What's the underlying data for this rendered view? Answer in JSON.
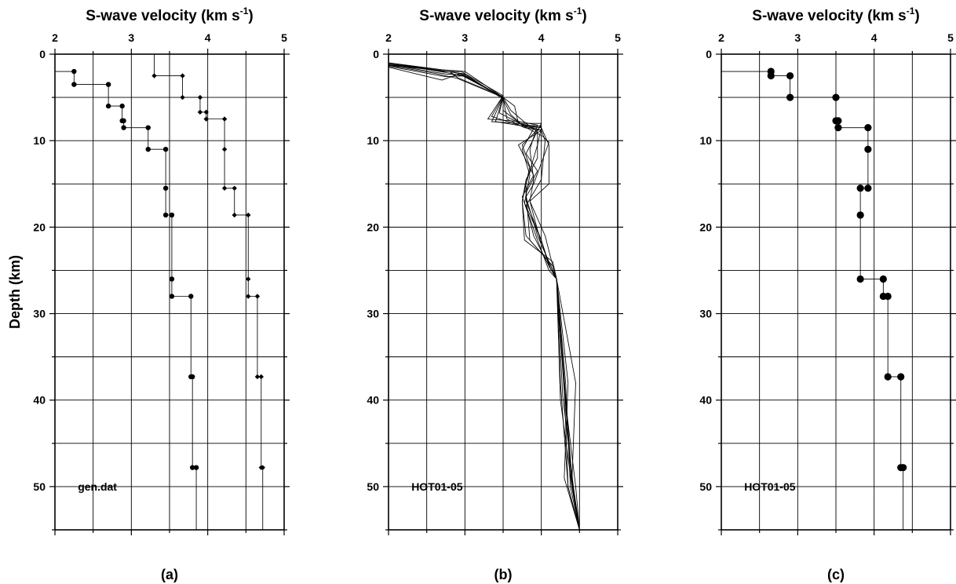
{
  "figure": {
    "ylabel": "Depth (km)"
  },
  "chart_data": [
    {
      "type": "line",
      "panel_label": "(a)",
      "xlabel": "S-wave velocity (km s",
      "xlabel_sup": "-1",
      "xlabel_end": ")",
      "xlim": [
        2,
        5
      ],
      "ylim": [
        0,
        55
      ],
      "y_inverted": true,
      "x_ticks": [
        "2",
        "3",
        "4",
        "5"
      ],
      "y_ticks": [
        "0",
        "10",
        "20",
        "30",
        "40",
        "50"
      ],
      "grid": true,
      "annotation": "gen.dat",
      "series": [
        {
          "style": "step-with-dots",
          "points": [
            [
              2.0,
              2.0
            ],
            [
              2.25,
              2.0
            ],
            [
              2.25,
              3.5
            ],
            [
              2.7,
              3.5
            ],
            [
              2.7,
              6.0
            ],
            [
              2.88,
              6.0
            ],
            [
              2.88,
              7.7
            ],
            [
              2.9,
              7.7
            ],
            [
              2.9,
              8.5
            ],
            [
              3.22,
              8.5
            ],
            [
              3.22,
              11.0
            ],
            [
              3.45,
              11.0
            ],
            [
              3.45,
              15.5
            ],
            [
              3.45,
              18.6
            ],
            [
              3.53,
              18.6
            ],
            [
              3.53,
              26.0
            ],
            [
              3.53,
              28.0
            ],
            [
              3.78,
              28.0
            ],
            [
              3.78,
              37.3
            ],
            [
              3.8,
              37.3
            ],
            [
              3.8,
              47.8
            ],
            [
              3.85,
              47.8
            ],
            [
              3.85,
              55.0
            ]
          ]
        },
        {
          "style": "step-with-diamonds",
          "points": [
            [
              3.3,
              0.0
            ],
            [
              3.3,
              2.5
            ],
            [
              3.67,
              2.5
            ],
            [
              3.67,
              5.0
            ],
            [
              3.9,
              5.0
            ],
            [
              3.9,
              6.7
            ],
            [
              3.98,
              6.7
            ],
            [
              3.98,
              7.5
            ],
            [
              4.22,
              7.5
            ],
            [
              4.22,
              11.0
            ],
            [
              4.22,
              15.5
            ],
            [
              4.35,
              15.5
            ],
            [
              4.35,
              18.6
            ],
            [
              4.53,
              18.6
            ],
            [
              4.53,
              26.0
            ],
            [
              4.53,
              28.0
            ],
            [
              4.65,
              28.0
            ],
            [
              4.65,
              37.3
            ],
            [
              4.7,
              37.3
            ],
            [
              4.7,
              47.8
            ],
            [
              4.72,
              47.8
            ],
            [
              4.72,
              55.0
            ]
          ]
        }
      ]
    },
    {
      "type": "line",
      "panel_label": "(b)",
      "xlabel": "S-wave velocity (km s",
      "xlabel_sup": "-1",
      "xlabel_end": ")",
      "xlim": [
        2,
        5
      ],
      "ylim": [
        0,
        55
      ],
      "y_inverted": true,
      "x_ticks": [
        "2",
        "3",
        "4",
        "5"
      ],
      "y_ticks": [
        "0",
        "10",
        "20",
        "30",
        "40",
        "50"
      ],
      "grid": true,
      "annotation": "HOT01-05",
      "series": [
        {
          "points": [
            [
              2.0,
              1.0
            ],
            [
              2.7,
              1.8
            ],
            [
              3.0,
              2.0
            ],
            [
              3.5,
              5.0
            ],
            [
              3.35,
              7.8
            ],
            [
              3.7,
              8.0
            ],
            [
              4.0,
              8.5
            ],
            [
              3.95,
              10.5
            ],
            [
              3.8,
              15.0
            ],
            [
              3.8,
              17.0
            ],
            [
              4.0,
              21.5
            ],
            [
              4.1,
              24.5
            ],
            [
              4.2,
              26.0
            ],
            [
              4.25,
              38.0
            ],
            [
              4.35,
              50.0
            ],
            [
              4.5,
              55.0
            ]
          ]
        },
        {
          "points": [
            [
              2.0,
              1.2
            ],
            [
              2.8,
              2.0
            ],
            [
              2.95,
              2.3
            ],
            [
              3.5,
              5.0
            ],
            [
              3.5,
              6.5
            ],
            [
              3.75,
              8.2
            ],
            [
              4.0,
              8.3
            ],
            [
              3.75,
              10.5
            ],
            [
              3.85,
              13.0
            ],
            [
              3.75,
              17.0
            ],
            [
              3.78,
              21.5
            ],
            [
              4.15,
              24.0
            ],
            [
              4.2,
              26.0
            ],
            [
              4.3,
              38.5
            ],
            [
              4.4,
              50.0
            ],
            [
              4.5,
              55.0
            ]
          ]
        },
        {
          "points": [
            [
              2.0,
              1.4
            ],
            [
              2.75,
              2.6
            ],
            [
              3.0,
              2.5
            ],
            [
              3.5,
              5.0
            ],
            [
              3.65,
              6.0
            ],
            [
              3.7,
              8.0
            ],
            [
              4.0,
              8.8
            ],
            [
              4.05,
              10.0
            ],
            [
              4.0,
              14.5
            ],
            [
              3.8,
              17.5
            ],
            [
              3.9,
              21.0
            ],
            [
              4.1,
              24.5
            ],
            [
              4.2,
              26.0
            ],
            [
              4.3,
              39.0
            ],
            [
              4.45,
              50.0
            ],
            [
              4.5,
              55.0
            ]
          ]
        },
        {
          "points": [
            [
              2.0,
              1.1
            ],
            [
              2.7,
              2.0
            ],
            [
              2.95,
              2.0
            ],
            [
              3.5,
              4.8
            ],
            [
              3.3,
              7.5
            ],
            [
              3.72,
              7.8
            ],
            [
              3.95,
              8.2
            ],
            [
              3.85,
              11.0
            ],
            [
              3.9,
              14.5
            ],
            [
              3.85,
              17.0
            ],
            [
              4.05,
              21.0
            ],
            [
              4.15,
              24.5
            ],
            [
              4.2,
              26.0
            ],
            [
              4.35,
              38.0
            ],
            [
              4.3,
              49.0
            ],
            [
              4.5,
              55.0
            ]
          ]
        },
        {
          "points": [
            [
              2.0,
              1.3
            ],
            [
              2.6,
              2.2
            ],
            [
              2.9,
              2.8
            ],
            [
              3.5,
              5.0
            ],
            [
              3.55,
              7.5
            ],
            [
              3.78,
              8.5
            ],
            [
              4.0,
              8.8
            ],
            [
              3.7,
              10.5
            ],
            [
              3.9,
              14.0
            ],
            [
              3.75,
              16.5
            ],
            [
              3.95,
              21.5
            ],
            [
              4.1,
              25.0
            ],
            [
              4.2,
              26.0
            ],
            [
              4.25,
              40.0
            ],
            [
              4.4,
              50.0
            ],
            [
              4.5,
              55.0
            ]
          ]
        },
        {
          "points": [
            [
              2.0,
              1.0
            ],
            [
              2.8,
              2.2
            ],
            [
              3.0,
              2.6
            ],
            [
              3.5,
              5.0
            ],
            [
              3.4,
              7.8
            ],
            [
              3.75,
              8.3
            ],
            [
              4.0,
              8.5
            ],
            [
              4.1,
              10.5
            ],
            [
              4.1,
              15.0
            ],
            [
              3.85,
              17.0
            ],
            [
              4.0,
              22.0
            ],
            [
              4.15,
              25.0
            ],
            [
              4.2,
              26.0
            ],
            [
              4.3,
              37.5
            ],
            [
              4.4,
              49.0
            ],
            [
              4.5,
              55.0
            ]
          ]
        },
        {
          "points": [
            [
              2.0,
              1.5
            ],
            [
              2.7,
              3.0
            ],
            [
              2.95,
              2.2
            ],
            [
              3.5,
              5.0
            ],
            [
              3.6,
              6.5
            ],
            [
              3.8,
              8.0
            ],
            [
              3.95,
              9.0
            ],
            [
              3.95,
              12.0
            ],
            [
              3.8,
              14.5
            ],
            [
              3.75,
              17.0
            ],
            [
              3.8,
              21.0
            ],
            [
              4.1,
              24.0
            ],
            [
              4.2,
              26.0
            ],
            [
              4.3,
              38.5
            ],
            [
              4.35,
              50.0
            ],
            [
              4.5,
              55.0
            ]
          ]
        },
        {
          "points": [
            [
              2.0,
              1.2
            ],
            [
              2.75,
              2.3
            ],
            [
              2.95,
              2.4
            ],
            [
              3.5,
              5.0
            ],
            [
              3.45,
              6.8
            ],
            [
              3.72,
              8.0
            ],
            [
              4.0,
              8.0
            ],
            [
              3.8,
              11.5
            ],
            [
              3.95,
              13.5
            ],
            [
              3.8,
              16.0
            ],
            [
              3.85,
              21.5
            ],
            [
              4.15,
              24.5
            ],
            [
              4.2,
              26.0
            ],
            [
              4.28,
              39.5
            ],
            [
              4.42,
              50.0
            ],
            [
              4.5,
              55.0
            ]
          ]
        },
        {
          "points": [
            [
              2.0,
              1.0
            ],
            [
              2.7,
              1.9
            ],
            [
              3.0,
              2.3
            ],
            [
              3.5,
              5.2
            ],
            [
              3.6,
              7.0
            ],
            [
              3.78,
              8.4
            ],
            [
              4.02,
              9.5
            ],
            [
              4.1,
              10.2
            ],
            [
              3.9,
              15.0
            ],
            [
              3.8,
              16.5
            ],
            [
              3.95,
              21.0
            ],
            [
              4.1,
              24.0
            ],
            [
              4.2,
              26.0
            ],
            [
              4.45,
              38.0
            ],
            [
              4.4,
              49.5
            ],
            [
              4.5,
              55.0
            ]
          ]
        },
        {
          "points": [
            [
              2.0,
              1.3
            ],
            [
              2.8,
              2.0
            ],
            [
              2.9,
              2.7
            ],
            [
              3.5,
              4.9
            ],
            [
              3.35,
              7.2
            ],
            [
              3.7,
              8.2
            ],
            [
              3.9,
              8.6
            ],
            [
              3.75,
              11.0
            ],
            [
              3.85,
              14.0
            ],
            [
              3.78,
              17.2
            ],
            [
              4.0,
              21.5
            ],
            [
              4.12,
              24.8
            ],
            [
              4.2,
              26.0
            ],
            [
              4.32,
              38.2
            ],
            [
              4.38,
              50.0
            ],
            [
              4.5,
              55.0
            ]
          ]
        }
      ]
    },
    {
      "type": "line",
      "panel_label": "(c)",
      "xlabel": "S-wave velocity (km s",
      "xlabel_sup": "-1",
      "xlabel_end": ")",
      "xlim": [
        2,
        5
      ],
      "ylim": [
        0,
        55
      ],
      "y_inverted": true,
      "x_ticks": [
        "2",
        "3",
        "4",
        "5"
      ],
      "y_ticks": [
        "0",
        "10",
        "20",
        "30",
        "40",
        "50"
      ],
      "grid": true,
      "annotation": "HOT01-05",
      "series": [
        {
          "style": "step-with-large-dots",
          "points": [
            [
              2.0,
              2.0
            ],
            [
              2.65,
              2.0
            ],
            [
              2.65,
              2.5
            ],
            [
              2.9,
              2.5
            ],
            [
              2.9,
              5.0
            ],
            [
              3.5,
              5.0
            ],
            [
              3.5,
              7.7
            ],
            [
              3.53,
              7.7
            ],
            [
              3.53,
              8.5
            ],
            [
              3.92,
              8.5
            ],
            [
              3.92,
              11.0
            ],
            [
              3.92,
              15.5
            ],
            [
              3.82,
              15.5
            ],
            [
              3.82,
              18.6
            ],
            [
              3.82,
              26.0
            ],
            [
              4.12,
              26.0
            ],
            [
              4.12,
              28.0
            ],
            [
              4.18,
              28.0
            ],
            [
              4.18,
              37.3
            ],
            [
              4.35,
              37.3
            ],
            [
              4.35,
              47.8
            ],
            [
              4.38,
              47.8
            ],
            [
              4.38,
              55.0
            ]
          ]
        }
      ]
    }
  ]
}
